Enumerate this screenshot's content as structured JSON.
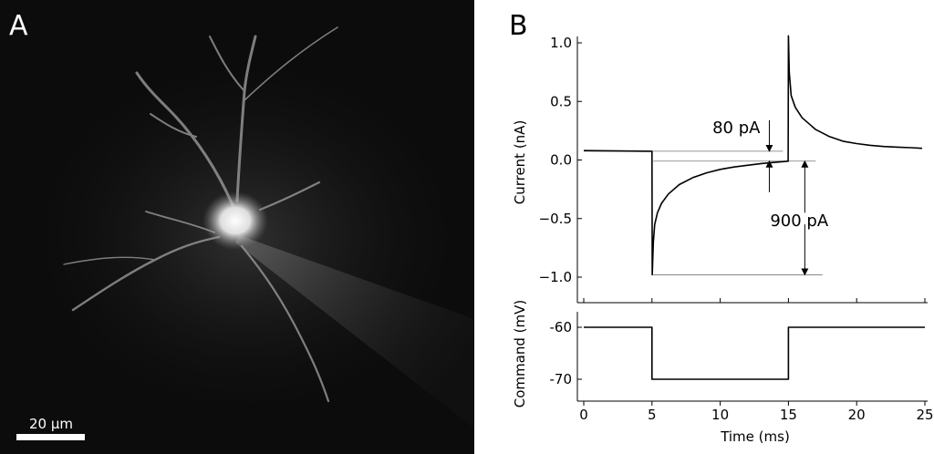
{
  "panel_a": {
    "label": "A",
    "scale_bar_label": "20 µm"
  },
  "panel_b": {
    "label": "B"
  },
  "chart_data": [
    {
      "type": "line",
      "ylabel": "Current (nA)",
      "ylim": [
        -1.05,
        1.1
      ],
      "xlim": [
        -0.2,
        25.3
      ],
      "yticks": [
        1.0,
        0.5,
        0.0,
        -0.5,
        -1.0
      ],
      "ytick_labels": [
        "1.0",
        "0.5",
        "0.0",
        "−0.5",
        "−1.0"
      ],
      "xticks": [
        0,
        5,
        10,
        15,
        20,
        25
      ],
      "grid": false,
      "series": [
        {
          "x": [
            0,
            5,
            5.02,
            5.1,
            5.2,
            5.4,
            5.7,
            6.2,
            7,
            8,
            9,
            10,
            11,
            12,
            13,
            14,
            14.98,
            15,
            15.06,
            15.2,
            15.5,
            16,
            17,
            18,
            19,
            20,
            21,
            22,
            23,
            24,
            24.8
          ],
          "y": [
            0.08,
            0.075,
            -0.98,
            -0.7,
            -0.55,
            -0.45,
            -0.37,
            -0.29,
            -0.21,
            -0.15,
            -0.11,
            -0.08,
            -0.06,
            -0.045,
            -0.03,
            -0.02,
            -0.01,
            1.06,
            0.75,
            0.55,
            0.45,
            0.36,
            0.26,
            0.2,
            0.16,
            0.14,
            0.125,
            0.115,
            0.11,
            0.105,
            0.1
          ]
        }
      ],
      "annotations": [
        {
          "text": "80 pA",
          "from": 0.075,
          "to": -0.01,
          "x": 13.6
        },
        {
          "text": "900 pA",
          "from": -0.01,
          "to": -0.98,
          "x": 16.2
        }
      ]
    },
    {
      "type": "line",
      "ylabel": "Command (mV)",
      "xlabel": "Time (ms)",
      "ylim": [
        -72,
        -58
      ],
      "xlim": [
        -0.2,
        25.3
      ],
      "yticks": [
        -60,
        -70
      ],
      "ytick_labels": [
        "-60",
        "-70"
      ],
      "xticks": [
        0,
        5,
        10,
        15,
        20,
        25
      ],
      "xtick_labels": [
        "0",
        "5",
        "10",
        "15",
        "20",
        "25"
      ],
      "grid": false,
      "series": [
        {
          "x": [
            0,
            5,
            5,
            15,
            15,
            25
          ],
          "y": [
            -60,
            -60,
            -70,
            -70,
            -60,
            -60
          ]
        }
      ]
    }
  ]
}
